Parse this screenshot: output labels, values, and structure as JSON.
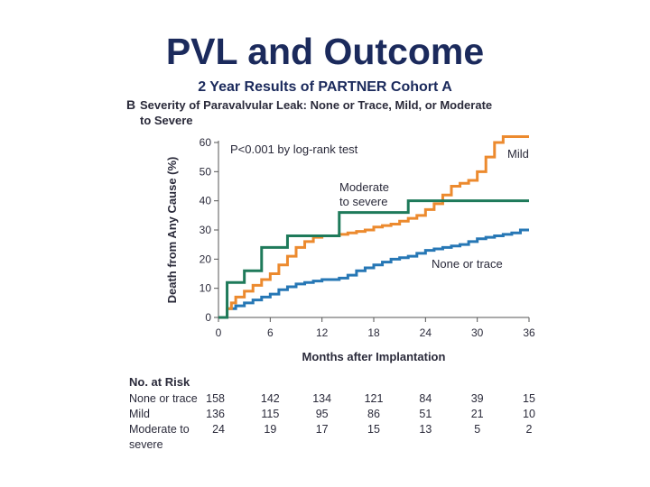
{
  "slide": {
    "title": "PVL and Outcome",
    "subtitle": "2 Year Results of PARTNER Cohort A"
  },
  "chart_data": {
    "type": "line",
    "panel_letter": "B",
    "title_line1": "Severity of Paravalvular Leak: None or Trace, Mild, or Moderate",
    "title_line2": "to Severe",
    "annotation": "P<0.001 by log-rank test",
    "xlabel": "Months after Implantation",
    "ylabel": "Death from Any Cause (%)",
    "xlim": [
      0,
      36
    ],
    "ylim": [
      0,
      60
    ],
    "xticks": [
      0,
      6,
      12,
      18,
      24,
      30,
      36
    ],
    "yticks": [
      0,
      10,
      20,
      30,
      40,
      50,
      60
    ],
    "grid": false,
    "colors": {
      "none": "#2677b5",
      "mild": "#ec8a2e",
      "moderate": "#1e7a5a",
      "text": "#2a2a3a",
      "title": "#1b2a5c"
    },
    "series": [
      {
        "name": "None or trace",
        "key": "none",
        "label_lines": [
          "None or trace"
        ],
        "x": [
          0,
          1,
          2,
          3,
          4,
          5,
          6,
          7,
          8,
          9,
          10,
          11,
          12,
          13,
          14,
          15,
          16,
          17,
          18,
          19,
          20,
          21,
          22,
          23,
          24,
          25,
          26,
          27,
          28,
          29,
          30,
          31,
          32,
          33,
          34,
          35
        ],
        "y": [
          0,
          3,
          4,
          5,
          6,
          7,
          8,
          9.5,
          10.5,
          11.5,
          12,
          12.5,
          13,
          13,
          13.5,
          14.5,
          16,
          17,
          18,
          19,
          20,
          20.5,
          21,
          22,
          23,
          23.5,
          24,
          24.5,
          25,
          26,
          27,
          27.5,
          28,
          28.5,
          29,
          30
        ]
      },
      {
        "name": "Mild",
        "key": "mild",
        "label_lines": [
          "Mild"
        ],
        "x": [
          0,
          0.5,
          1,
          1.5,
          2,
          3,
          4,
          5,
          6,
          7,
          8,
          9,
          10,
          11,
          12,
          13,
          14,
          15,
          16,
          17,
          18,
          19,
          20,
          21,
          22,
          23,
          24,
          25,
          26,
          27,
          28,
          29,
          30,
          31,
          32,
          33,
          34,
          35
        ],
        "y": [
          0,
          0,
          3,
          5,
          7,
          9,
          11,
          13,
          15,
          18,
          21,
          24,
          26,
          27.5,
          28,
          28,
          28.5,
          29,
          29.5,
          30,
          31,
          31.5,
          32,
          33,
          34,
          35,
          37,
          39,
          42,
          45,
          46,
          47,
          50,
          55,
          60,
          62,
          62,
          62
        ]
      },
      {
        "name": "Moderate to severe",
        "key": "moderate",
        "label_lines": [
          "Moderate",
          "to severe"
        ],
        "x": [
          0,
          0.3,
          1,
          2,
          3,
          4,
          5,
          6,
          7,
          8,
          9,
          10,
          11,
          12,
          13,
          14,
          15,
          16,
          17,
          18,
          19,
          20,
          21,
          22,
          23,
          24,
          25,
          26,
          27,
          28,
          29,
          30,
          31,
          32,
          33,
          34,
          35
        ],
        "y": [
          0,
          0,
          12,
          12,
          16,
          16,
          24,
          24,
          24,
          28,
          28,
          28,
          28,
          28,
          28,
          36,
          36,
          36,
          36,
          36,
          36,
          36,
          36,
          40,
          40,
          40,
          40,
          40,
          40,
          40,
          40,
          40,
          40,
          40,
          40,
          40,
          40
        ]
      }
    ],
    "risk_table": {
      "header": "No. at Risk",
      "time_points": [
        0,
        6,
        12,
        18,
        24,
        30,
        36
      ],
      "rows": [
        {
          "label_lines": [
            "None or trace"
          ],
          "values": [
            "158",
            "142",
            "134",
            "121",
            "84",
            "39",
            "15"
          ]
        },
        {
          "label_lines": [
            "Mild"
          ],
          "values": [
            "136",
            "115",
            "95",
            "86",
            "51",
            "21",
            "10"
          ]
        },
        {
          "label_lines": [
            "Moderate to",
            "severe"
          ],
          "values": [
            "24",
            "19",
            "17",
            "15",
            "13",
            "5",
            "2"
          ]
        }
      ]
    }
  }
}
